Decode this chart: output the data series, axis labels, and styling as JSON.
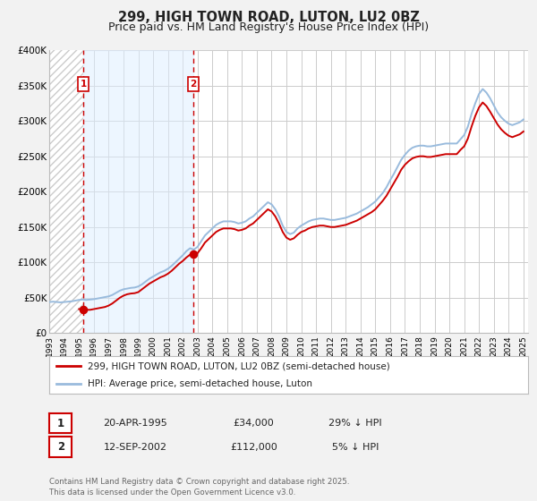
{
  "title": "299, HIGH TOWN ROAD, LUTON, LU2 0BZ",
  "subtitle": "Price paid vs. HM Land Registry's House Price Index (HPI)",
  "title_fontsize": 10.5,
  "subtitle_fontsize": 9,
  "ylim": [
    0,
    400000
  ],
  "yticks": [
    0,
    50000,
    100000,
    150000,
    200000,
    250000,
    300000,
    350000,
    400000
  ],
  "ytick_labels": [
    "£0",
    "£50K",
    "£100K",
    "£150K",
    "£200K",
    "£250K",
    "£300K",
    "£350K",
    "£400K"
  ],
  "background_color": "#f2f2f2",
  "plot_bg_color": "#ffffff",
  "grid_color": "#cccccc",
  "purchase1": {
    "date_num": 1995.3,
    "price": 34000,
    "label": "1",
    "date_str": "20-APR-1995",
    "price_str": "£34,000",
    "hpi_diff": "29% ↓ HPI"
  },
  "purchase2": {
    "date_num": 2002.71,
    "price": 112000,
    "label": "2",
    "date_str": "12-SEP-2002",
    "price_str": "£112,000",
    "hpi_diff": "5% ↓ HPI"
  },
  "line_color_property": "#cc0000",
  "line_color_hpi": "#99bbdd",
  "dot_color_property": "#cc0000",
  "vline_color": "#cc0000",
  "span_color": "#ddeeff",
  "hatch_color": "#dddddd",
  "legend_label_property": "299, HIGH TOWN ROAD, LUTON, LU2 0BZ (semi-detached house)",
  "legend_label_hpi": "HPI: Average price, semi-detached house, Luton",
  "footer": "Contains HM Land Registry data © Crown copyright and database right 2025.\nThis data is licensed under the Open Government Licence v3.0.",
  "hpi_data_years": [
    1993.0,
    1993.25,
    1993.5,
    1993.75,
    1994.0,
    1994.25,
    1994.5,
    1994.75,
    1995.0,
    1995.25,
    1995.5,
    1995.75,
    1996.0,
    1996.25,
    1996.5,
    1996.75,
    1997.0,
    1997.25,
    1997.5,
    1997.75,
    1998.0,
    1998.25,
    1998.5,
    1998.75,
    1999.0,
    1999.25,
    1999.5,
    1999.75,
    2000.0,
    2000.25,
    2000.5,
    2000.75,
    2001.0,
    2001.25,
    2001.5,
    2001.75,
    2002.0,
    2002.25,
    2002.5,
    2002.75,
    2003.0,
    2003.25,
    2003.5,
    2003.75,
    2004.0,
    2004.25,
    2004.5,
    2004.75,
    2005.0,
    2005.25,
    2005.5,
    2005.75,
    2006.0,
    2006.25,
    2006.5,
    2006.75,
    2007.0,
    2007.25,
    2007.5,
    2007.75,
    2008.0,
    2008.25,
    2008.5,
    2008.75,
    2009.0,
    2009.25,
    2009.5,
    2009.75,
    2010.0,
    2010.25,
    2010.5,
    2010.75,
    2011.0,
    2011.25,
    2011.5,
    2011.75,
    2012.0,
    2012.25,
    2012.5,
    2012.75,
    2013.0,
    2013.25,
    2013.5,
    2013.75,
    2014.0,
    2014.25,
    2014.5,
    2014.75,
    2015.0,
    2015.25,
    2015.5,
    2015.75,
    2016.0,
    2016.25,
    2016.5,
    2016.75,
    2017.0,
    2017.25,
    2017.5,
    2017.75,
    2018.0,
    2018.25,
    2018.5,
    2018.75,
    2019.0,
    2019.25,
    2019.5,
    2019.75,
    2020.0,
    2020.25,
    2020.5,
    2020.75,
    2021.0,
    2021.25,
    2021.5,
    2021.75,
    2022.0,
    2022.25,
    2022.5,
    2022.75,
    2023.0,
    2023.25,
    2023.5,
    2023.75,
    2024.0,
    2024.25,
    2024.5,
    2024.75,
    2025.0
  ],
  "hpi_data_values": [
    44000,
    44500,
    44000,
    43500,
    44000,
    44500,
    45000,
    46000,
    47000,
    47500,
    47000,
    47500,
    48000,
    49000,
    50000,
    51000,
    52000,
    54000,
    57000,
    60000,
    62000,
    63000,
    64000,
    64500,
    66000,
    69000,
    73000,
    77000,
    80000,
    83000,
    86000,
    88000,
    91000,
    95000,
    100000,
    105000,
    110000,
    116000,
    120000,
    118000,
    122000,
    130000,
    138000,
    143000,
    148000,
    153000,
    156000,
    158000,
    158000,
    158000,
    157000,
    155000,
    156000,
    158000,
    162000,
    165000,
    170000,
    175000,
    180000,
    185000,
    182000,
    175000,
    165000,
    152000,
    143000,
    140000,
    142000,
    148000,
    152000,
    155000,
    158000,
    160000,
    161000,
    162000,
    162000,
    161000,
    160000,
    160000,
    161000,
    162000,
    163000,
    165000,
    167000,
    169000,
    172000,
    175000,
    178000,
    182000,
    186000,
    192000,
    198000,
    206000,
    216000,
    225000,
    235000,
    245000,
    252000,
    258000,
    262000,
    264000,
    265000,
    265000,
    264000,
    264000,
    265000,
    266000,
    267000,
    268000,
    268000,
    268000,
    268000,
    274000,
    280000,
    292000,
    310000,
    325000,
    338000,
    345000,
    340000,
    332000,
    322000,
    312000,
    305000,
    300000,
    296000,
    294000,
    296000,
    298000,
    302000
  ],
  "prop_data_years": [
    1995.3,
    2002.71
  ],
  "prop_data_values": [
    34000,
    112000
  ],
  "prop_line_years": [
    1995.0,
    1995.25,
    1995.5,
    1995.75,
    1996.0,
    1996.25,
    1996.5,
    1996.75,
    1997.0,
    1997.25,
    1997.5,
    1997.75,
    1998.0,
    1998.25,
    1998.5,
    1998.75,
    1999.0,
    1999.25,
    1999.5,
    1999.75,
    2000.0,
    2000.25,
    2000.5,
    2000.75,
    2001.0,
    2001.25,
    2001.5,
    2001.75,
    2002.0,
    2002.25,
    2002.5,
    2002.75,
    2003.0,
    2003.25,
    2003.5,
    2003.75,
    2004.0,
    2004.25,
    2004.5,
    2004.75,
    2005.0,
    2005.25,
    2005.5,
    2005.75,
    2006.0,
    2006.25,
    2006.5,
    2006.75,
    2007.0,
    2007.25,
    2007.5,
    2007.75,
    2008.0,
    2008.25,
    2008.5,
    2008.75,
    2009.0,
    2009.25,
    2009.5,
    2009.75,
    2010.0,
    2010.25,
    2010.5,
    2010.75,
    2011.0,
    2011.25,
    2011.5,
    2011.75,
    2012.0,
    2012.25,
    2012.5,
    2012.75,
    2013.0,
    2013.25,
    2013.5,
    2013.75,
    2014.0,
    2014.25,
    2014.5,
    2014.75,
    2015.0,
    2015.25,
    2015.5,
    2015.75,
    2016.0,
    2016.25,
    2016.5,
    2016.75,
    2017.0,
    2017.25,
    2017.5,
    2017.75,
    2018.0,
    2018.25,
    2018.5,
    2018.75,
    2019.0,
    2019.25,
    2019.5,
    2019.75,
    2020.0,
    2020.25,
    2020.5,
    2020.75,
    2021.0,
    2021.25,
    2021.5,
    2021.75,
    2022.0,
    2022.25,
    2022.5,
    2022.75,
    2023.0,
    2023.25,
    2023.5,
    2023.75,
    2024.0,
    2024.25,
    2024.5,
    2024.75,
    2025.0
  ],
  "prop_line_values": [
    34000,
    33500,
    33000,
    33000,
    34000,
    35000,
    36000,
    37000,
    39000,
    42000,
    46000,
    50000,
    53000,
    55000,
    56000,
    56500,
    58000,
    62000,
    66000,
    70000,
    73000,
    76000,
    79000,
    81000,
    84000,
    88000,
    93000,
    98000,
    102000,
    107000,
    111000,
    109000,
    113000,
    120000,
    128000,
    133000,
    138000,
    143000,
    146000,
    148000,
    148000,
    148000,
    147000,
    145000,
    146000,
    148000,
    152000,
    155000,
    160000,
    165000,
    170000,
    175000,
    172000,
    165000,
    155000,
    143000,
    135000,
    132000,
    134000,
    139000,
    143000,
    145000,
    148000,
    150000,
    151000,
    152000,
    152000,
    151000,
    150000,
    150000,
    151000,
    152000,
    153000,
    155000,
    157000,
    159000,
    162000,
    165000,
    168000,
    171000,
    175000,
    181000,
    187000,
    194000,
    203000,
    212000,
    221000,
    231000,
    238000,
    243000,
    247000,
    249000,
    250000,
    250000,
    249000,
    249000,
    250000,
    251000,
    252000,
    253000,
    253000,
    253000,
    253000,
    259000,
    264000,
    275000,
    292000,
    307000,
    319000,
    326000,
    321000,
    313000,
    304000,
    295000,
    288000,
    283000,
    279000,
    277000,
    279000,
    281000,
    285000
  ]
}
